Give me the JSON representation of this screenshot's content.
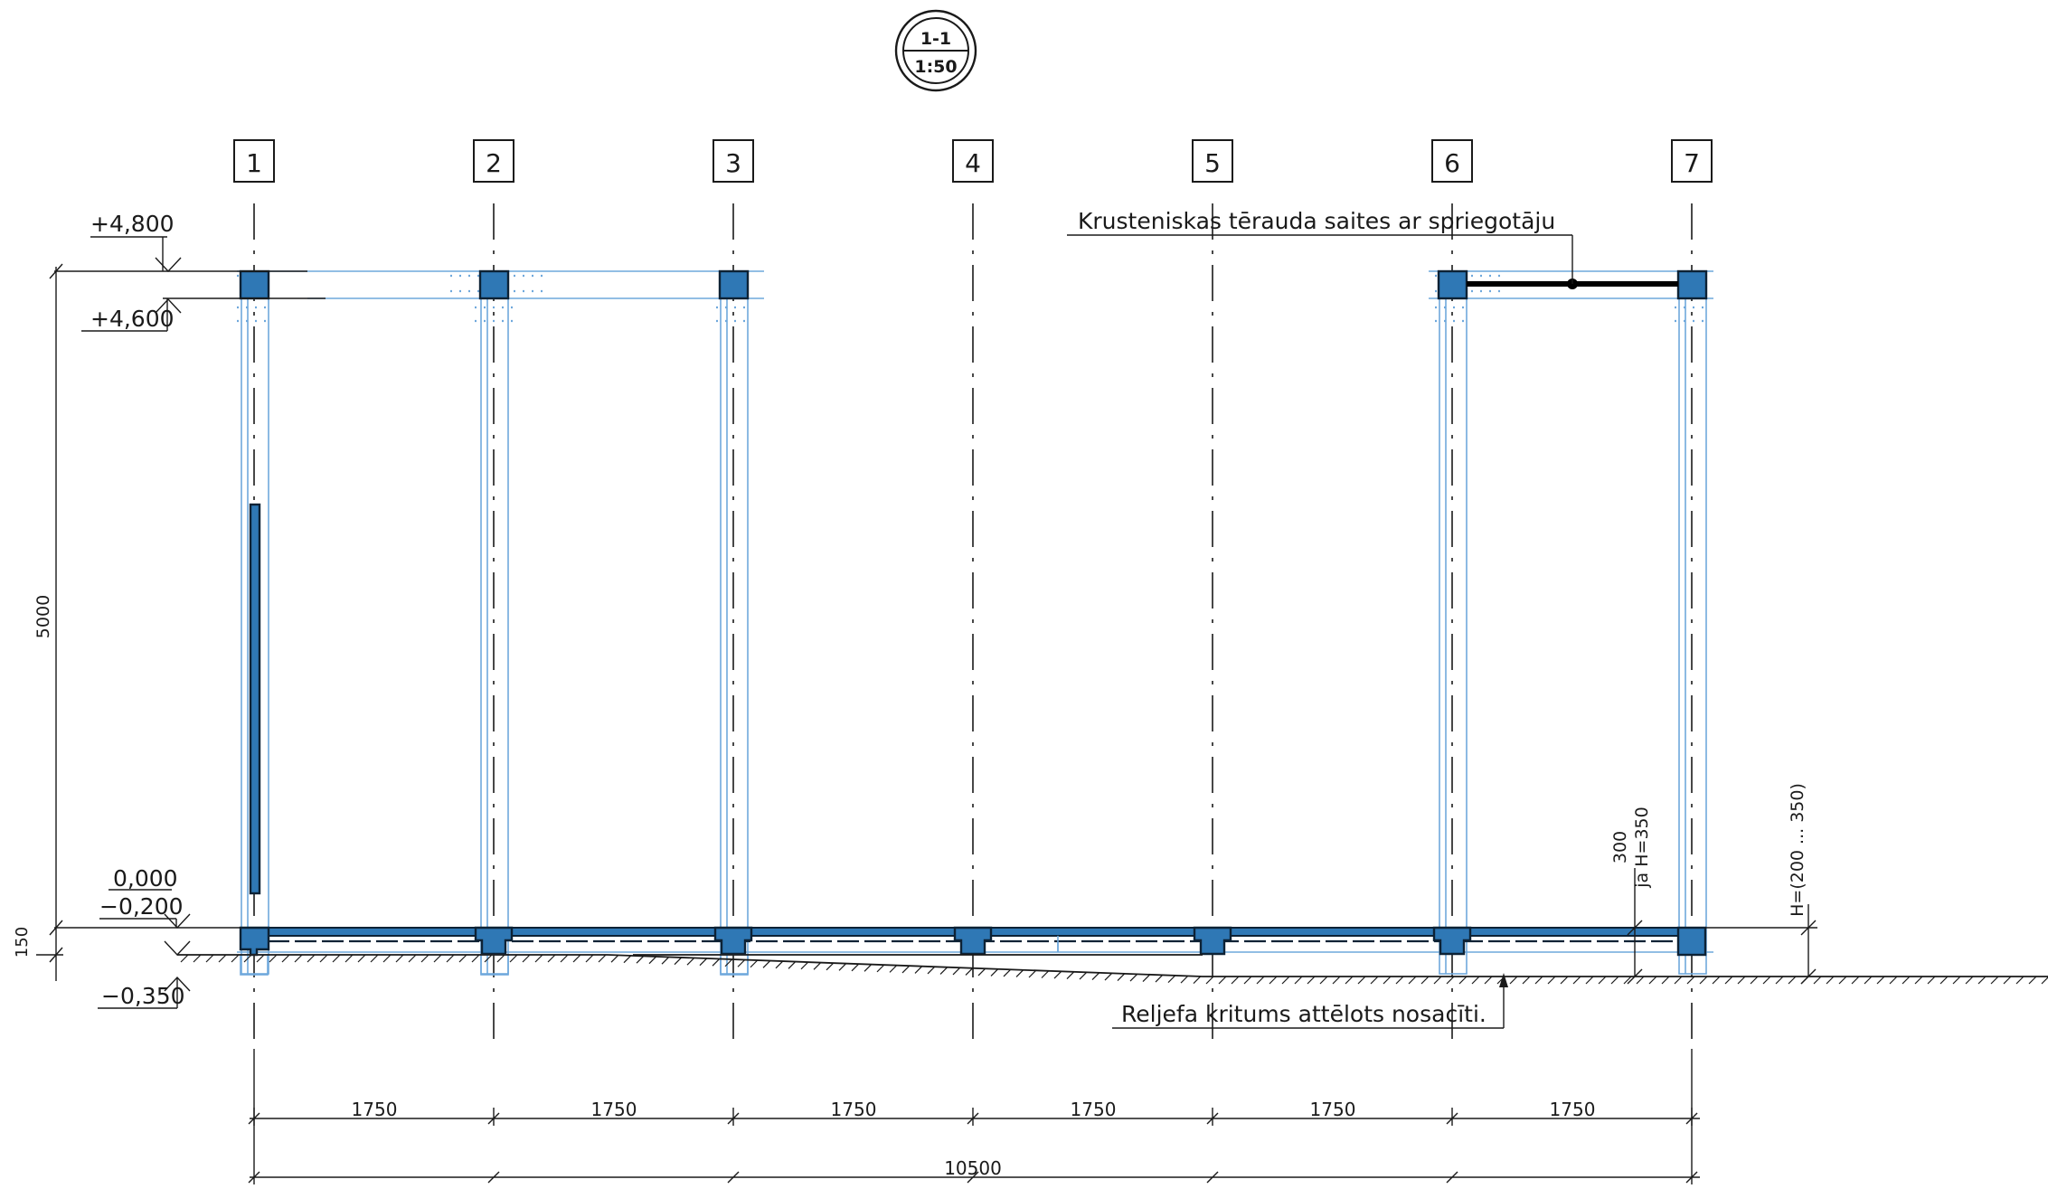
{
  "section_mark": {
    "number": "1-1",
    "scale": "1:50"
  },
  "axes": [
    "1",
    "2",
    "3",
    "4",
    "5",
    "6",
    "7"
  ],
  "levels": {
    "top": "+4,800",
    "beam_bottom": "+4,600",
    "zero": "0,000",
    "floor": "−0,200",
    "foundation": "−0,350"
  },
  "dimensions": {
    "height": "5000",
    "base": "150",
    "spans": [
      "1750",
      "1750",
      "1750",
      "1750",
      "1750",
      "1750"
    ],
    "total": "10500",
    "right_a": "300",
    "right_b": "ja H=350",
    "right_h": "H=(200 ... 350)"
  },
  "notes": {
    "bracing": "Krusteniskas tērauda saites ar spriegotāju",
    "terrain": "Reljefa kritums attēlots nosacīti."
  },
  "colors": {
    "steel": "#2f78b5",
    "outline": "#6fa8dc",
    "ink": "#1a1a1a"
  }
}
